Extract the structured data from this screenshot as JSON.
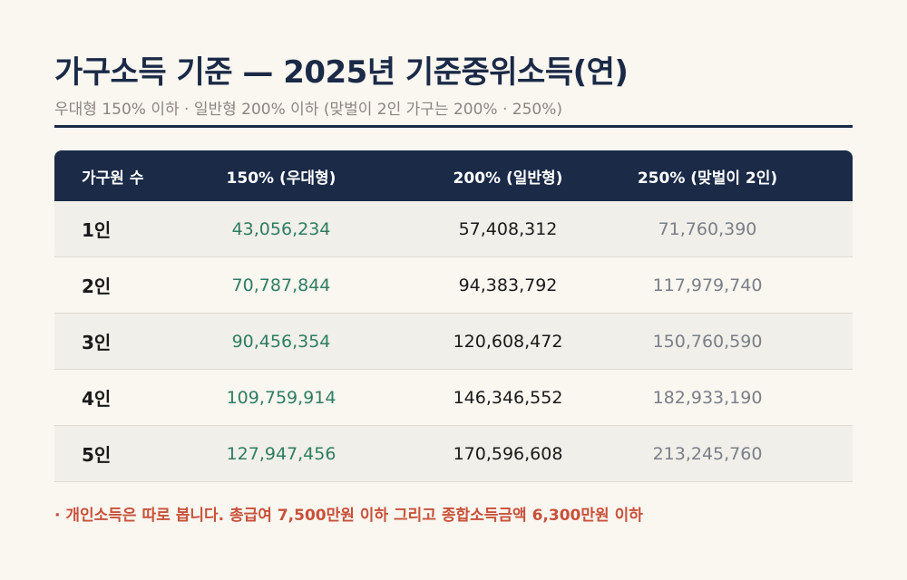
{
  "header": {
    "title": "가구소득 기준 — 2025년 기준중위소득(연)",
    "subtitle": "우대형 150% 이하 · 일반형 200% 이하 (맞벌이 2인 가구는 200% · 250%)"
  },
  "table": {
    "columns": [
      "가구원 수",
      "150% (우대형)",
      "200% (일반형)",
      "250% (맞벌이 2인)"
    ],
    "rows": [
      {
        "size": "1인",
        "v150": "43,056,234",
        "v200": "57,408,312",
        "v250": "71,760,390"
      },
      {
        "size": "2인",
        "v150": "70,787,844",
        "v200": "94,383,792",
        "v250": "117,979,740"
      },
      {
        "size": "3인",
        "v150": "90,456,354",
        "v200": "120,608,472",
        "v250": "150,760,590"
      },
      {
        "size": "4인",
        "v150": "109,759,914",
        "v200": "146,346,552",
        "v250": "182,933,190"
      },
      {
        "size": "5인",
        "v150": "127,947,456",
        "v200": "170,596,608",
        "v250": "213,245,760"
      }
    ]
  },
  "note": "· 개인소득은 따로 봅니다. 총급여 7,500만원 이하 그리고 종합소득금액 6,300만원 이하",
  "colors": {
    "navy": "#1a2a47",
    "green": "#2e7d62",
    "gray": "#7a7f88",
    "red": "#c8513a"
  }
}
